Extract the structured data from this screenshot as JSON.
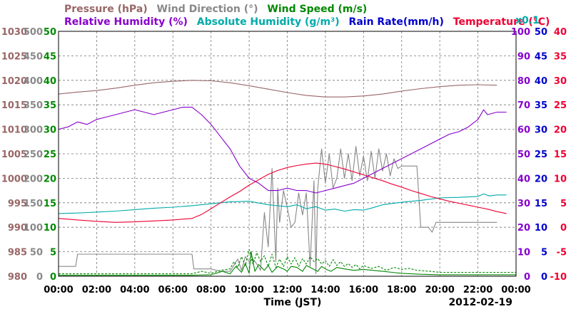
{
  "chart_data": {
    "type": "line",
    "date": "2012-02-19",
    "xlabel": "Time (JST)",
    "x_ticks": [
      "00:00",
      "02:00",
      "04:00",
      "06:00",
      "08:00",
      "10:00",
      "12:00",
      "14:00",
      "16:00",
      "18:00",
      "20:00",
      "22:00",
      "00:00"
    ],
    "legend_line1": [
      {
        "text": "Pressure (hPa)",
        "color": "#996666"
      },
      {
        "text": "Wind Direction (°)",
        "color": "#888888"
      },
      {
        "text": "Wind Speed (m/s)",
        "color": "#008800"
      }
    ],
    "legend_line2": [
      {
        "text": "Relative Humidity (%)",
        "color": "#8800cc"
      },
      {
        "text": "Absolute Humidity (g/m³)",
        "color": "#00aaaa"
      },
      {
        "text": "Rain Rate(mm/h)",
        "color": "#0000cc"
      },
      {
        "text": "Temperature (°C)",
        "color": "#ee0033"
      }
    ],
    "multiplier_label": "x0.1",
    "axes": {
      "pressure": {
        "color": "#996666",
        "ticks": [
          "1030",
          "1025",
          "1020",
          "1015",
          "1010",
          "1005",
          "1000",
          "995",
          "990",
          "985",
          "980"
        ],
        "range": [
          980,
          1030
        ]
      },
      "wind_direction": {
        "color": "#888888",
        "ticks": [
          "500",
          "450",
          "400",
          "350",
          "300",
          "250",
          "200",
          "150",
          "100",
          "50",
          "0"
        ],
        "range": [
          0,
          500
        ]
      },
      "wind_speed": {
        "color": "#008800",
        "ticks": [
          "50",
          "45",
          "40",
          "35",
          "30",
          "25",
          "20",
          "15",
          "10",
          "5",
          "0"
        ],
        "range": [
          0,
          50
        ]
      },
      "relative_humidity": {
        "color": "#8800cc",
        "ticks": [
          "100",
          "90",
          "80",
          "70",
          "60",
          "50",
          "40",
          "30",
          "20",
          "10",
          "0"
        ],
        "range": [
          0,
          100
        ]
      },
      "rain_rate": {
        "color": "#0000cc",
        "ticks": [
          "50",
          "45",
          "40",
          "35",
          "30",
          "25",
          "20",
          "15",
          "10",
          "5",
          "0"
        ],
        "range": [
          0,
          50
        ]
      },
      "temperature": {
        "color": "#ee0033",
        "ticks": [
          "40",
          "35",
          "30",
          "25",
          "20",
          "15",
          "10",
          "5",
          "0",
          "-5",
          "-10"
        ],
        "range": [
          -10,
          40
        ]
      }
    },
    "series": [
      {
        "name": "Pressure (hPa)",
        "axis": "pressure",
        "color": "#996666",
        "dash": false,
        "x": [
          0,
          1,
          2,
          3,
          4,
          5,
          6,
          7,
          8,
          9,
          10,
          11,
          12,
          13,
          14,
          15,
          16,
          17,
          18,
          19,
          20,
          21,
          22,
          23
        ],
        "y": [
          1017.2,
          1017.6,
          1017.9,
          1018.4,
          1019.0,
          1019.5,
          1019.8,
          1020.0,
          1019.9,
          1019.5,
          1018.9,
          1018.2,
          1017.5,
          1016.9,
          1016.6,
          1016.6,
          1016.8,
          1017.2,
          1017.8,
          1018.3,
          1018.7,
          1019.0,
          1019.1,
          1019.0
        ]
      },
      {
        "name": "Wind Direction (°)",
        "axis": "wind_direction",
        "color": "#888888",
        "dash": false,
        "x": [
          0,
          0.9,
          1.0,
          7.0,
          7.1,
          8.0,
          8.5,
          9.0,
          9.4,
          9.6,
          9.8,
          10.0,
          10.2,
          10.4,
          10.6,
          10.8,
          11.0,
          11.2,
          11.4,
          11.5,
          11.6,
          11.8,
          12.0,
          12.2,
          12.4,
          12.6,
          12.8,
          13.0,
          13.2,
          13.4,
          13.5,
          13.6,
          13.8,
          14.0,
          14.2,
          14.4,
          14.6,
          14.8,
          15.0,
          15.2,
          15.4,
          15.6,
          15.8,
          16.0,
          16.2,
          16.4,
          16.6,
          16.8,
          17.0,
          17.2,
          17.4,
          17.6,
          17.8,
          18.0,
          18.4,
          18.8,
          19.0,
          19.4,
          19.6,
          19.8,
          20.0,
          23.0
        ],
        "y": [
          20,
          20,
          45,
          45,
          15,
          15,
          10,
          10,
          35,
          12,
          40,
          30,
          35,
          25,
          12,
          130,
          60,
          220,
          30,
          180,
          110,
          175,
          140,
          100,
          110,
          170,
          125,
          170,
          20,
          195,
          5,
          180,
          260,
          190,
          250,
          180,
          200,
          260,
          200,
          250,
          195,
          265,
          205,
          245,
          195,
          255,
          200,
          260,
          215,
          250,
          205,
          240,
          220,
          225,
          225,
          225,
          100,
          100,
          90,
          110,
          110,
          110
        ]
      },
      {
        "name": "Wind Speed (m/s)",
        "axis": "wind_speed",
        "color": "#008800",
        "dash": true,
        "x": [
          0,
          7,
          7.5,
          8,
          8.5,
          9,
          9.2,
          9.4,
          9.6,
          9.8,
          10,
          10.2,
          10.4,
          10.6,
          10.8,
          11,
          11.2,
          11.4,
          11.6,
          11.8,
          12,
          12.2,
          12.4,
          12.6,
          12.8,
          13,
          13.2,
          13.4,
          13.6,
          13.8,
          14,
          14.2,
          14.4,
          14.6,
          14.8,
          15,
          15.2,
          15.4,
          15.6,
          15.8,
          16,
          16.4,
          16.8,
          17.2,
          17.6,
          18,
          18.4,
          18.8,
          19.5,
          20,
          24
        ],
        "y": [
          0.5,
          0.5,
          1,
          0.6,
          1.2,
          1.5,
          3,
          1.8,
          4,
          2.2,
          5.5,
          2.5,
          4.8,
          3,
          4.2,
          2,
          4.5,
          1.8,
          3.5,
          2,
          4,
          2.5,
          3.8,
          2,
          3.6,
          2.5,
          4,
          3,
          3.6,
          2.5,
          3.2,
          2,
          3.4,
          2.2,
          3,
          2,
          2.6,
          1.8,
          2.4,
          1.5,
          2.2,
          1.6,
          2,
          1.2,
          1.8,
          1.4,
          1.6,
          1.2,
          1,
          0.8,
          0.8
        ]
      },
      {
        "name": "Wind Speed (m/s)",
        "axis": "wind_speed",
        "color": "#008800",
        "dash": false,
        "x": [
          0,
          7,
          8,
          8.6,
          9,
          9.3,
          9.6,
          9.8,
          10,
          10.1,
          10.3,
          10.5,
          10.8,
          11,
          11.2,
          11.5,
          11.8,
          12,
          12.2,
          12.5,
          12.8,
          13,
          13.3,
          13.6,
          13.8,
          14,
          14.3,
          14.6,
          15,
          15.5,
          16,
          16.5,
          17,
          17.5,
          18,
          19,
          20,
          24
        ],
        "y": [
          0.2,
          0.2,
          0.3,
          1,
          0.5,
          2,
          0.8,
          2.6,
          0.6,
          5,
          1,
          2.4,
          1.2,
          2.2,
          0.8,
          2,
          1.5,
          1,
          2,
          1.8,
          1,
          2.2,
          1.6,
          1,
          2,
          1.5,
          1,
          1.8,
          1.5,
          1.2,
          1.4,
          1.2,
          1,
          0.8,
          0.6,
          0.4,
          0.3,
          0.3
        ]
      },
      {
        "name": "Relative Humidity (%)",
        "axis": "relative_humidity",
        "color": "#8800cc",
        "dash": false,
        "x": [
          0,
          0.5,
          1,
          1.5,
          2,
          2.5,
          3,
          3.5,
          4,
          4.5,
          5,
          5.5,
          6,
          6.5,
          7,
          7.5,
          8,
          8.5,
          9,
          9.5,
          10,
          10.5,
          11,
          11.5,
          12,
          12.5,
          13,
          13.5,
          14,
          14.5,
          15,
          15.5,
          16,
          16.5,
          17,
          17.5,
          18,
          18.5,
          19,
          19.5,
          20,
          20.5,
          21,
          21.5,
          22,
          22.3,
          22.5,
          23,
          23.5
        ],
        "y": [
          60,
          61,
          63,
          62,
          64,
          65,
          66,
          67,
          68,
          67,
          66,
          67,
          68,
          69,
          69,
          66,
          62,
          57,
          52,
          45,
          40,
          38,
          35,
          35,
          36,
          35,
          35,
          34,
          35,
          36,
          37,
          38,
          40,
          42,
          44,
          46,
          48,
          50,
          52,
          54,
          56,
          58,
          59,
          61,
          64,
          68,
          66,
          67,
          67
        ]
      },
      {
        "name": "Absolute Humidity (g/m³)",
        "axis": "pressure",
        "color": "#00aaaa",
        "dash": false,
        "x": [
          0,
          1,
          2,
          3,
          4,
          5,
          6,
          7,
          8,
          9,
          10,
          11,
          12,
          12.5,
          13,
          13.5,
          14,
          14.5,
          15,
          15.5,
          16,
          16.5,
          17,
          18,
          19,
          20,
          21,
          22,
          22.3,
          22.6,
          23,
          23.5
        ],
        "y": [
          992.8,
          992.9,
          993.1,
          993.3,
          993.6,
          993.9,
          994.1,
          994.4,
          994.8,
          995.2,
          995.3,
          994.6,
          994.2,
          994.6,
          993.8,
          994.2,
          993.5,
          993.7,
          993.3,
          993.6,
          993.5,
          994.0,
          994.6,
          995.1,
          995.5,
          996.0,
          996.1,
          996.3,
          996.8,
          996.4,
          996.6,
          996.6
        ]
      },
      {
        "name": "Temperature (°C)",
        "axis": "temperature",
        "color": "#ee0033",
        "dash": false,
        "x": [
          0,
          1,
          2,
          3,
          4,
          5,
          6,
          7,
          7.5,
          8,
          8.5,
          9,
          9.5,
          10,
          10.5,
          11,
          11.5,
          12,
          12.5,
          13,
          13.5,
          14,
          14.5,
          15,
          15.5,
          16,
          16.5,
          17,
          17.5,
          18,
          18.5,
          19,
          19.5,
          20,
          20.5,
          21,
          21.5,
          22,
          22.5,
          23,
          23.5
        ],
        "y": [
          1.8,
          1.5,
          1.2,
          1.0,
          1.1,
          1.3,
          1.5,
          1.8,
          2.6,
          3.8,
          5.0,
          6.2,
          7.3,
          8.6,
          9.7,
          10.8,
          11.6,
          12.2,
          12.6,
          12.9,
          13.1,
          12.9,
          12.4,
          11.9,
          11.3,
          10.7,
          10.1,
          9.5,
          8.8,
          8.2,
          7.5,
          6.9,
          6.3,
          5.8,
          5.3,
          4.9,
          4.5,
          4.1,
          3.7,
          3.2,
          2.8
        ]
      }
    ]
  }
}
